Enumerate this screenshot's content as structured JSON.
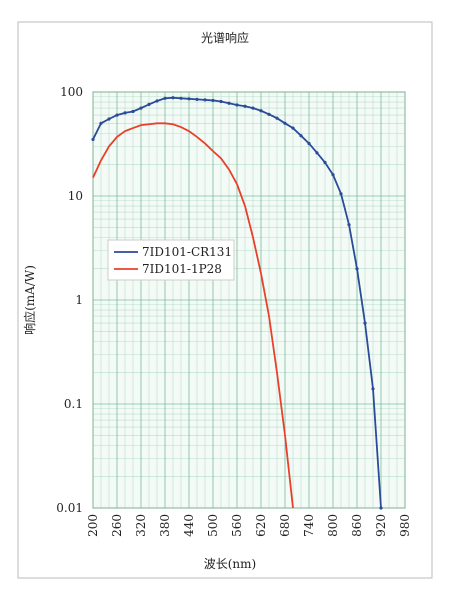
{
  "chart_data": {
    "type": "line",
    "title": "光谱响应",
    "x_label": "波长(nm)",
    "y_label": "响应(mA/W)",
    "log_y": true,
    "grid": true,
    "legend": "left",
    "xlim": [
      200,
      980
    ],
    "ylim": [
      0.01,
      100
    ],
    "xticks": [
      200,
      260,
      320,
      380,
      440,
      500,
      560,
      620,
      680,
      740,
      800,
      860,
      920,
      980
    ],
    "yticks": [
      100,
      10,
      1,
      0.1,
      0.01
    ],
    "series": [
      {
        "name": "7ID101-CR131",
        "color": "#2a4a9a",
        "x": [
          200,
          220,
          240,
          260,
          280,
          300,
          320,
          340,
          360,
          380,
          400,
          420,
          440,
          460,
          480,
          500,
          520,
          540,
          560,
          580,
          600,
          620,
          640,
          660,
          680,
          700,
          720,
          740,
          760,
          780,
          800,
          820,
          840,
          860,
          880,
          900,
          920
        ],
        "values": [
          35,
          50,
          55,
          60,
          63,
          65,
          70,
          76,
          82,
          87,
          88,
          87,
          86,
          85,
          84,
          83,
          81,
          78,
          75,
          73,
          70,
          66,
          61,
          56,
          50,
          45,
          38,
          32,
          26,
          21,
          16,
          10.5,
          5.3,
          2,
          0.6,
          0.14,
          0.01
        ]
      },
      {
        "name": "7ID101-1P28",
        "color": "#e8402a",
        "x": [
          200,
          220,
          240,
          260,
          280,
          300,
          320,
          340,
          360,
          380,
          400,
          420,
          440,
          460,
          480,
          500,
          520,
          540,
          560,
          580,
          600,
          620,
          640,
          660,
          680,
          700
        ],
        "values": [
          15,
          22,
          30,
          37,
          42,
          45,
          48,
          49,
          50,
          50,
          49,
          46,
          42,
          37,
          32,
          27,
          23,
          18,
          13,
          8,
          4,
          1.8,
          0.7,
          0.2,
          0.05,
          0.01
        ]
      }
    ]
  }
}
